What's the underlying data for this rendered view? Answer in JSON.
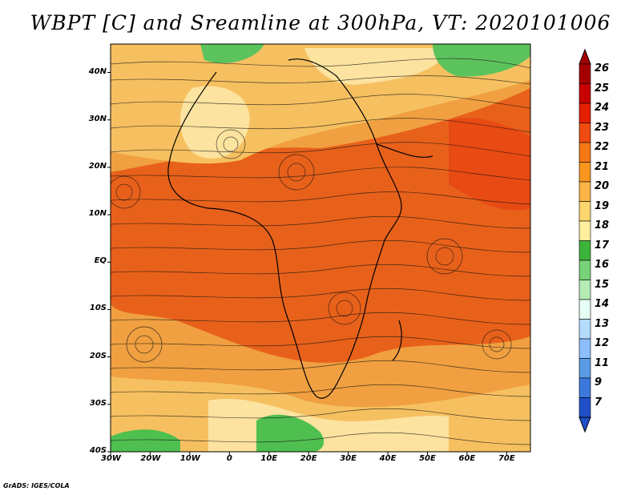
{
  "title": "WBPT [C] and Sreamline at 300hPa, VT: 2020101006",
  "footer": "GrADS: IGES/COLA",
  "map": {
    "lon_range": [
      -30,
      76
    ],
    "lat_range": [
      -40,
      46
    ],
    "lat_ticks": [
      {
        "value": 40,
        "label": "40N"
      },
      {
        "value": 30,
        "label": "30N"
      },
      {
        "value": 20,
        "label": "20N"
      },
      {
        "value": 10,
        "label": "10N"
      },
      {
        "value": 0,
        "label": "EQ"
      },
      {
        "value": -10,
        "label": "10S"
      },
      {
        "value": -20,
        "label": "20S"
      },
      {
        "value": -30,
        "label": "30S"
      },
      {
        "value": -40,
        "label": "40S"
      }
    ],
    "lon_ticks": [
      {
        "value": -30,
        "label": "30W"
      },
      {
        "value": -20,
        "label": "20W"
      },
      {
        "value": -10,
        "label": "10W"
      },
      {
        "value": 0,
        "label": "0"
      },
      {
        "value": 10,
        "label": "10E"
      },
      {
        "value": 20,
        "label": "20E"
      },
      {
        "value": 30,
        "label": "30E"
      },
      {
        "value": 40,
        "label": "40E"
      },
      {
        "value": 50,
        "label": "50E"
      },
      {
        "value": 60,
        "label": "60E"
      },
      {
        "value": 70,
        "label": "70E"
      }
    ]
  },
  "colorbar": {
    "levels": [
      {
        "label": "26",
        "color": "#a50000"
      },
      {
        "label": "25",
        "color": "#c80000"
      },
      {
        "label": "24",
        "color": "#e61e00"
      },
      {
        "label": "23",
        "color": "#f04b10"
      },
      {
        "label": "22",
        "color": "#f67814"
      },
      {
        "label": "21",
        "color": "#fa961e"
      },
      {
        "label": "20",
        "color": "#fcb446"
      },
      {
        "label": "19",
        "color": "#fed66e"
      },
      {
        "label": "18",
        "color": "#ffef9f"
      },
      {
        "label": "17",
        "color": "#3cb43c"
      },
      {
        "label": "16",
        "color": "#78d278"
      },
      {
        "label": "15",
        "color": "#b4ecb4"
      },
      {
        "label": "14",
        "color": "#e6fff5"
      },
      {
        "label": "13",
        "color": "#b4dcff"
      },
      {
        "label": "12",
        "color": "#8cbeff"
      },
      {
        "label": "11",
        "color": "#5a9be6"
      },
      {
        "label": "9",
        "color": "#3c78dc"
      },
      {
        "label": "7",
        "color": "#2050c8"
      }
    ],
    "arrow_colors": {
      "top": "#a50000",
      "bottom": "#2050c8"
    }
  }
}
